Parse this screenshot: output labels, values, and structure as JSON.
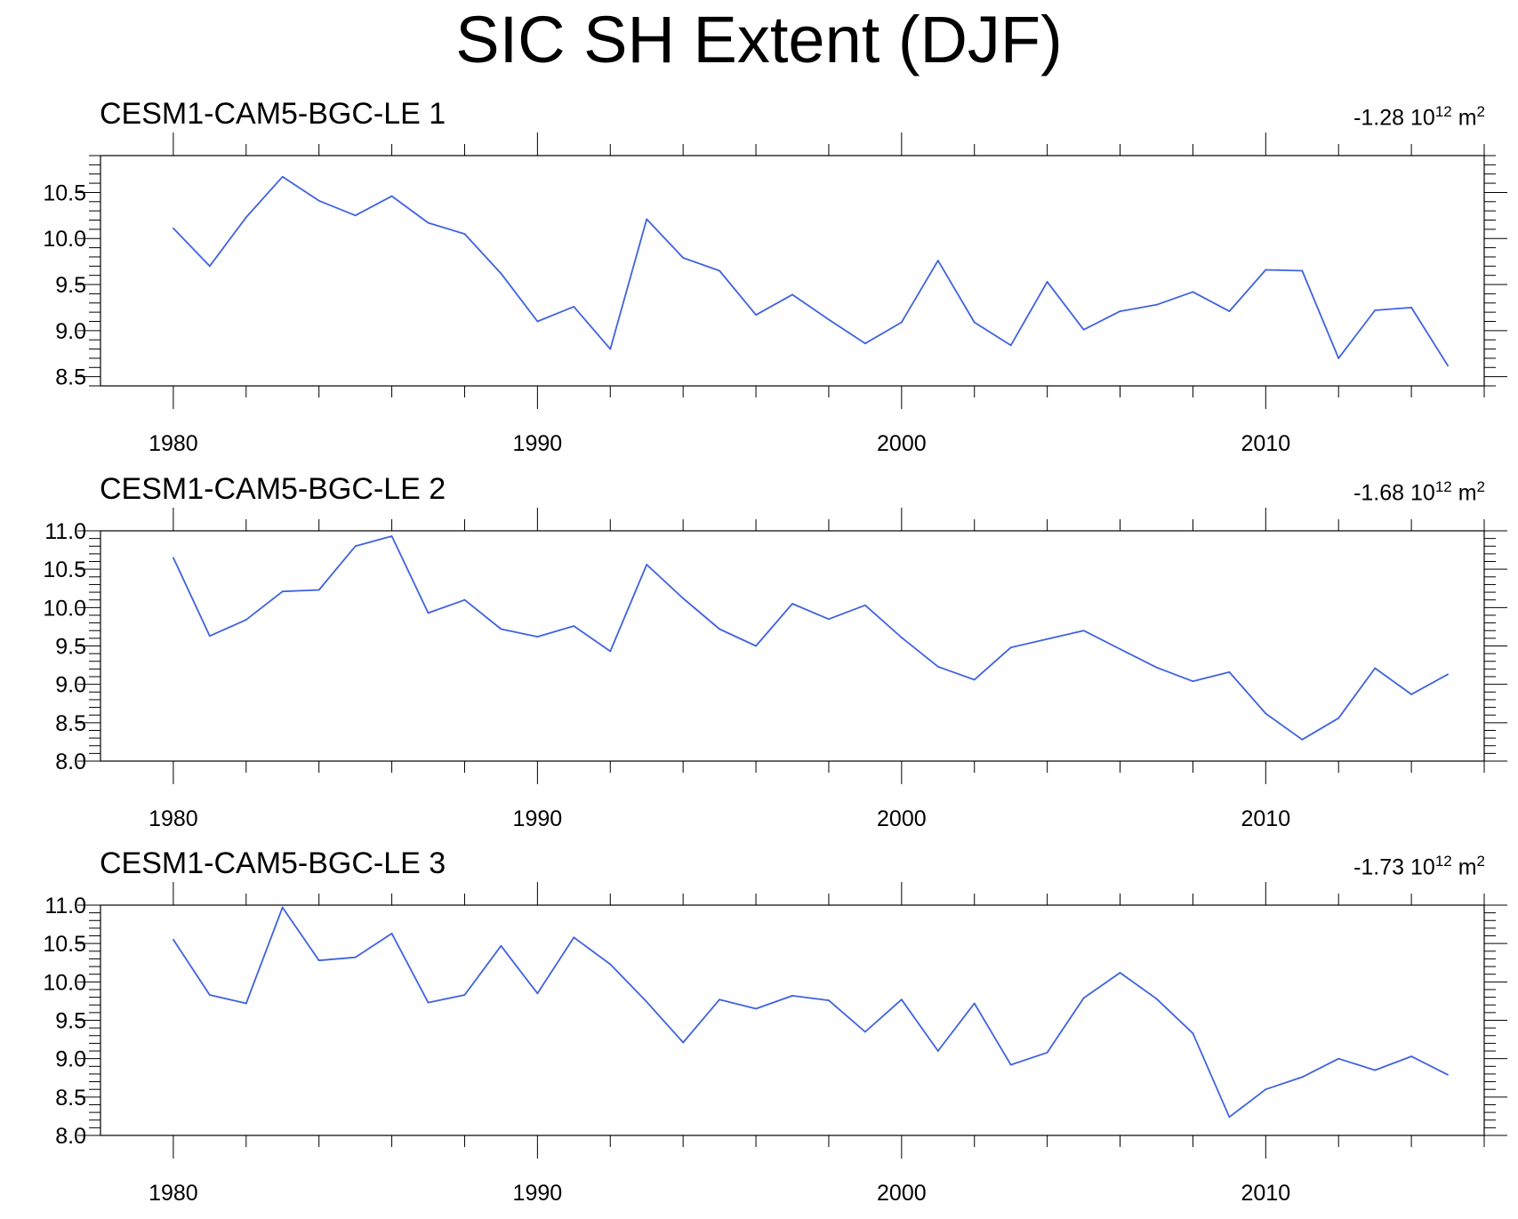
{
  "figure": {
    "title": "SIC SH Extent (DJF)"
  },
  "chart_data": [
    {
      "type": "line",
      "title": "CESM1-CAM5-BGC-LE 1",
      "trend": {
        "value": "-1.28",
        "base": "10",
        "exp": "12",
        "unit": "m",
        "unit_exp": "2"
      },
      "x": [
        1980,
        1981,
        1982,
        1983,
        1984,
        1985,
        1986,
        1987,
        1988,
        1989,
        1990,
        1991,
        1992,
        1993,
        1994,
        1995,
        1996,
        1997,
        1998,
        1999,
        2000,
        2001,
        2002,
        2003,
        2004,
        2005,
        2006,
        2007,
        2008,
        2009,
        2010,
        2011,
        2012,
        2013,
        2014,
        2015
      ],
      "series": [
        {
          "name": "CESM1-CAM5-BGC-LE 1",
          "color": "#3f62e0",
          "values": [
            10.11,
            9.7,
            10.23,
            10.67,
            10.41,
            10.25,
            10.46,
            10.17,
            10.05,
            9.62,
            9.1,
            9.26,
            8.8,
            10.21,
            9.79,
            9.65,
            9.17,
            9.39,
            9.12,
            8.86,
            9.09,
            9.76,
            9.09,
            8.84,
            9.53,
            9.01,
            9.21,
            9.28,
            9.42,
            9.21,
            9.66,
            9.65,
            8.7,
            9.22,
            9.25,
            8.62
          ]
        }
      ],
      "xlim": [
        1978,
        2016
      ],
      "ylim": [
        8.4,
        10.9
      ],
      "xticks": [
        1980,
        1990,
        2000,
        2010
      ],
      "xtick_labels": [
        "1980",
        "1990",
        "2000",
        "2010"
      ],
      "yticks": [
        8.5,
        9.0,
        9.5,
        10.0,
        10.5
      ],
      "ytick_labels": [
        "8.5",
        "9.0",
        "9.5",
        "10.0",
        "10.5"
      ],
      "xlabel": "",
      "ylabel": ""
    },
    {
      "type": "line",
      "title": "CESM1-CAM5-BGC-LE 2",
      "trend": {
        "value": "-1.68",
        "base": "10",
        "exp": "12",
        "unit": "m",
        "unit_exp": "2"
      },
      "x": [
        1980,
        1981,
        1982,
        1983,
        1984,
        1985,
        1986,
        1987,
        1988,
        1989,
        1990,
        1991,
        1992,
        1993,
        1994,
        1995,
        1996,
        1997,
        1998,
        1999,
        2000,
        2001,
        2002,
        2003,
        2004,
        2005,
        2006,
        2007,
        2008,
        2009,
        2010,
        2011,
        2012,
        2013,
        2014,
        2015
      ],
      "series": [
        {
          "name": "CESM1-CAM5-BGC-LE 2",
          "color": "#3f62e0",
          "values": [
            10.65,
            9.63,
            9.84,
            10.21,
            10.23,
            10.8,
            10.93,
            9.93,
            10.1,
            9.72,
            9.62,
            9.76,
            9.43,
            10.56,
            10.12,
            9.72,
            9.5,
            10.05,
            9.85,
            10.03,
            9.61,
            9.23,
            9.06,
            9.48,
            9.59,
            9.7,
            9.46,
            9.22,
            9.04,
            9.16,
            8.62,
            8.28,
            8.56,
            9.21,
            8.87,
            9.13
          ]
        }
      ],
      "xlim": [
        1978,
        2016
      ],
      "ylim": [
        8.0,
        11.0
      ],
      "xticks": [
        1980,
        1990,
        2000,
        2010
      ],
      "xtick_labels": [
        "1980",
        "1990",
        "2000",
        "2010"
      ],
      "yticks": [
        8.0,
        8.5,
        9.0,
        9.5,
        10.0,
        10.5,
        11.0
      ],
      "ytick_labels": [
        "8.0",
        "8.5",
        "9.0",
        "9.5",
        "10.0",
        "10.5",
        "11.0"
      ],
      "xlabel": "",
      "ylabel": ""
    },
    {
      "type": "line",
      "title": "CESM1-CAM5-BGC-LE 3",
      "trend": {
        "value": "-1.73",
        "base": "10",
        "exp": "12",
        "unit": "m",
        "unit_exp": "2"
      },
      "x": [
        1980,
        1981,
        1982,
        1983,
        1984,
        1985,
        1986,
        1987,
        1988,
        1989,
        1990,
        1991,
        1992,
        1993,
        1994,
        1995,
        1996,
        1997,
        1998,
        1999,
        2000,
        2001,
        2002,
        2003,
        2004,
        2005,
        2006,
        2007,
        2008,
        2009,
        2010,
        2011,
        2012,
        2013,
        2014,
        2015
      ],
      "series": [
        {
          "name": "CESM1-CAM5-BGC-LE 3",
          "color": "#3f62e0",
          "values": [
            10.55,
            9.83,
            9.72,
            10.97,
            10.28,
            10.32,
            10.63,
            9.73,
            9.83,
            10.47,
            9.85,
            10.58,
            10.23,
            9.74,
            9.21,
            9.77,
            9.65,
            9.82,
            9.76,
            9.35,
            9.77,
            9.1,
            9.72,
            8.92,
            9.08,
            9.79,
            10.12,
            9.78,
            9.33,
            8.24,
            8.6,
            8.76,
            9.0,
            8.85,
            9.03,
            8.79
          ]
        }
      ],
      "xlim": [
        1978,
        2016
      ],
      "ylim": [
        8.0,
        11.0
      ],
      "xticks": [
        1980,
        1990,
        2000,
        2010
      ],
      "xtick_labels": [
        "1980",
        "1990",
        "2000",
        "2010"
      ],
      "yticks": [
        8.0,
        8.5,
        9.0,
        9.5,
        10.0,
        10.5,
        11.0
      ],
      "ytick_labels": [
        "8.0",
        "8.5",
        "9.0",
        "9.5",
        "10.0",
        "10.5",
        "11.0"
      ],
      "xlabel": "",
      "ylabel": ""
    }
  ]
}
